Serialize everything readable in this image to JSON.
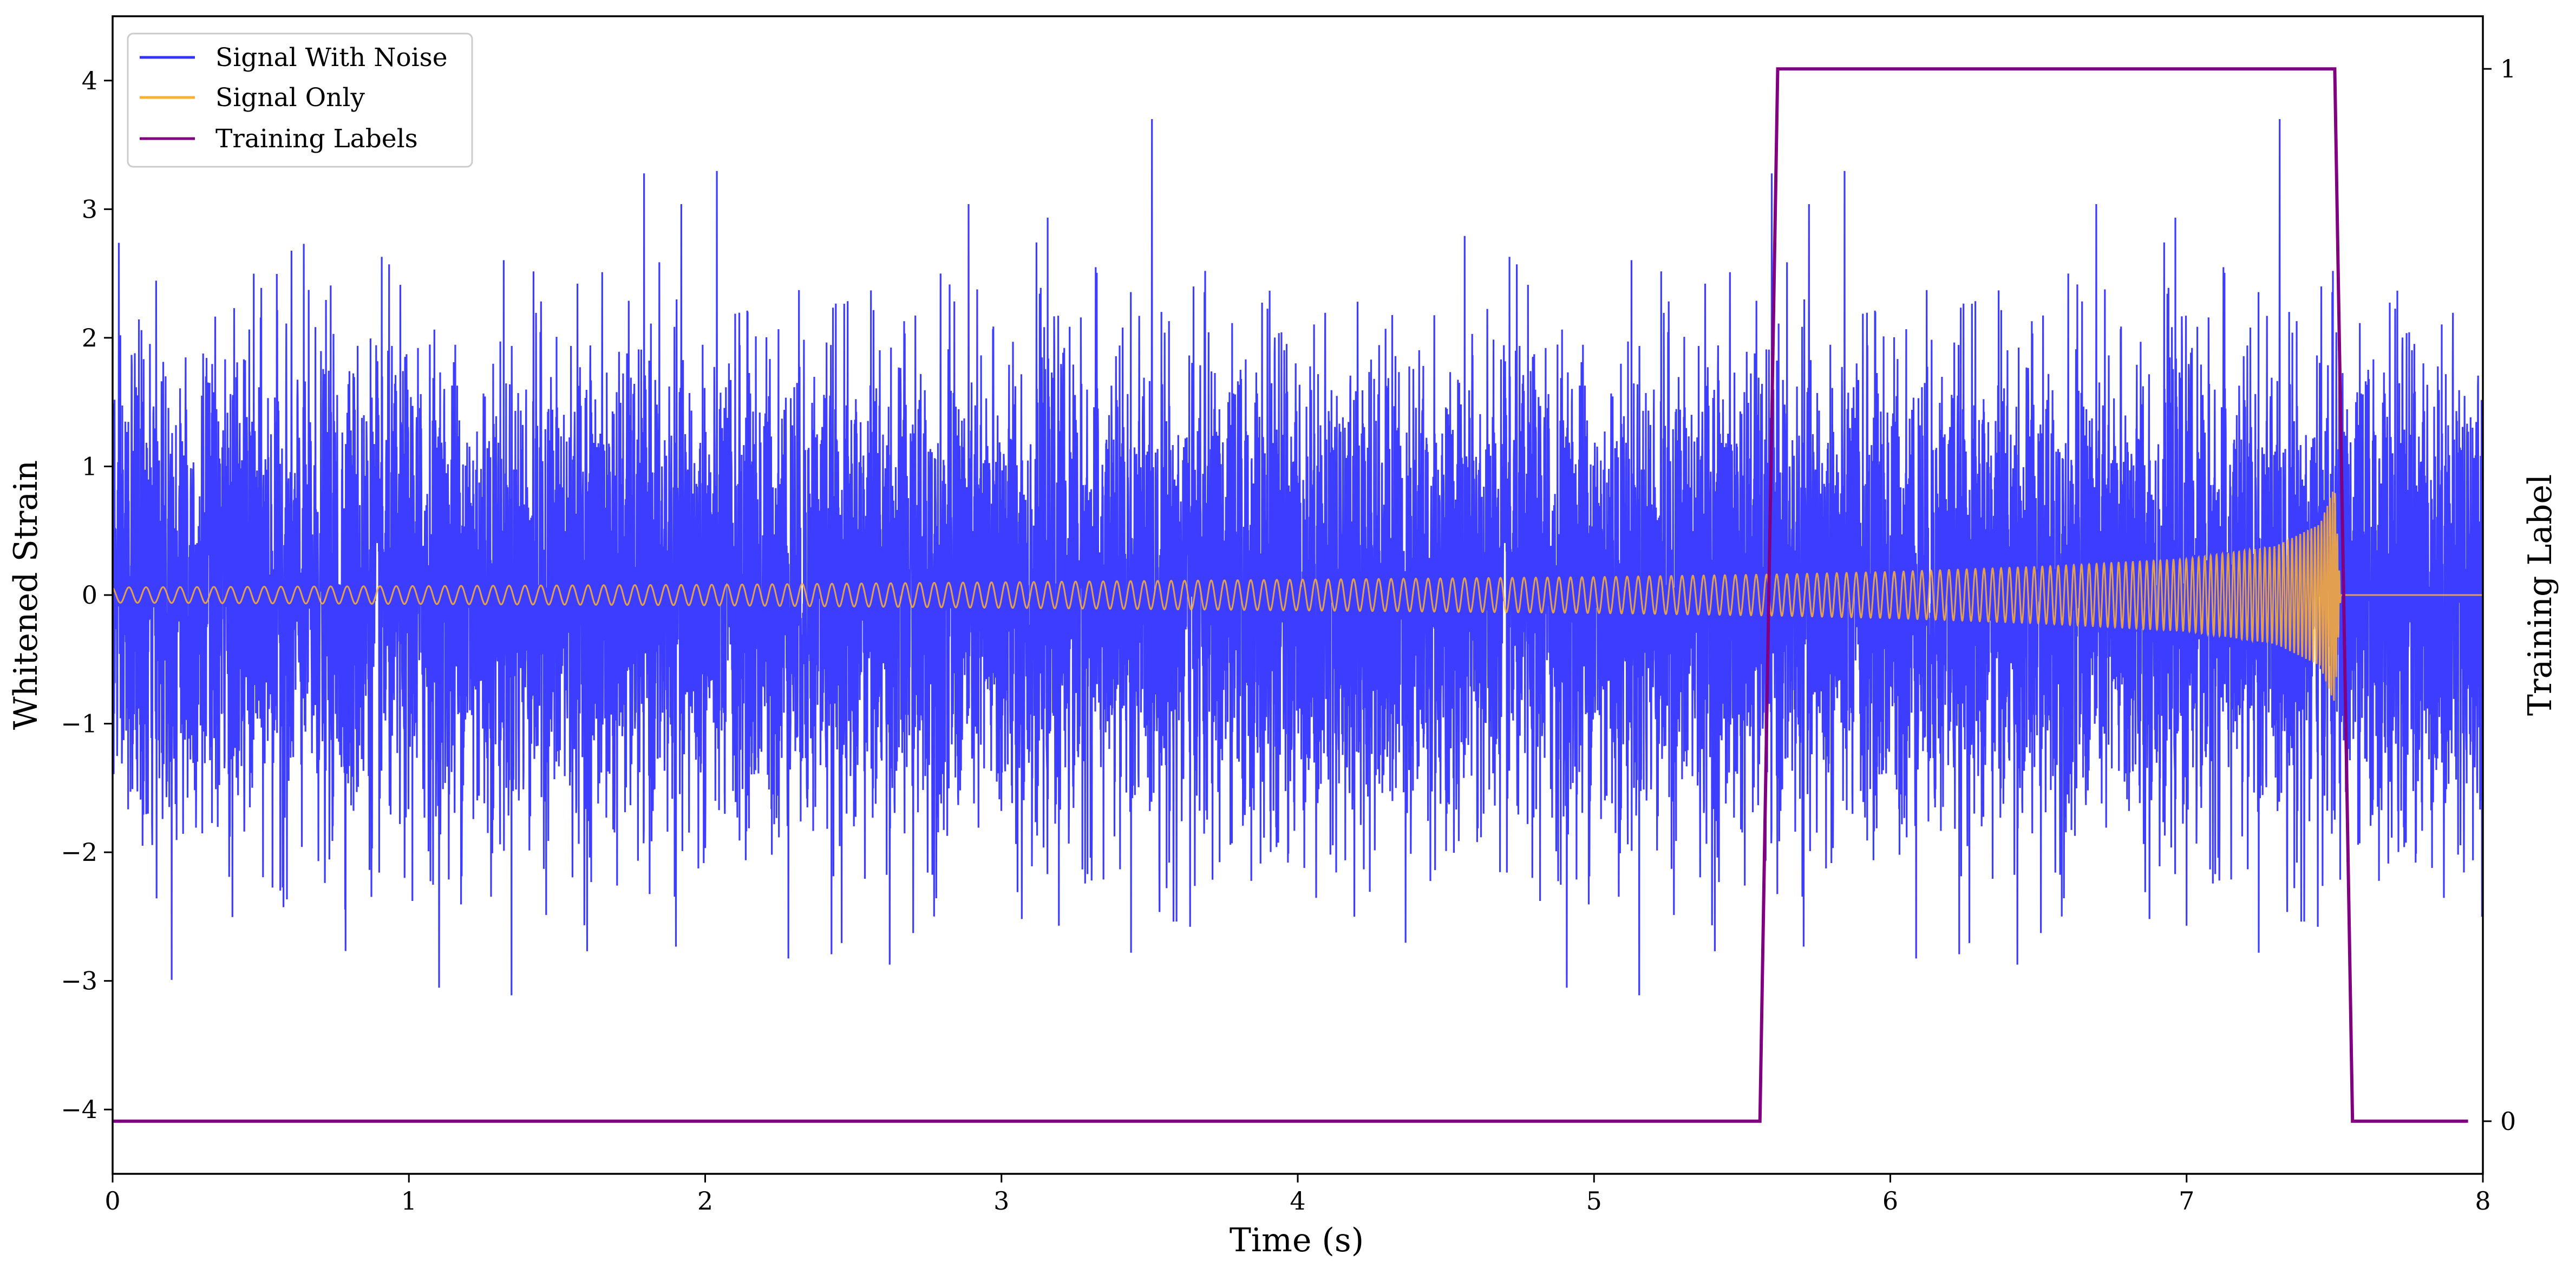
{
  "chart_data": {
    "type": "line",
    "xlabel": "Time (s)",
    "ylabel": "Whitened Strain",
    "y2label": "Training Label",
    "xlim": [
      0,
      8
    ],
    "ylim": [
      -4.5,
      4.5
    ],
    "y2lim": [
      -0.05,
      1.05
    ],
    "x_ticks": [
      "0",
      "1",
      "2",
      "3",
      "4",
      "5",
      "6",
      "7",
      "8"
    ],
    "y_ticks": [
      "−4",
      "−3",
      "−2",
      "−1",
      "0",
      "1",
      "2",
      "3",
      "4"
    ],
    "y2_ticks": [
      "0",
      "1"
    ],
    "legend_position": "upper-left",
    "grid": false,
    "series": [
      {
        "name": "Signal With Noise",
        "color": "#3333ff",
        "axis": "left",
        "description_range": [
          -4.0,
          3.7
        ]
      },
      {
        "name": "Signal Only",
        "color": "#ffb030",
        "axis": "left",
        "envelope": {
          "x": [
            0,
            1,
            2,
            3,
            4,
            5,
            5.6,
            6,
            6.5,
            7,
            7.3,
            7.45,
            7.5,
            7.52,
            8
          ],
          "amplitude": [
            0.06,
            0.07,
            0.08,
            0.1,
            0.12,
            0.14,
            0.16,
            0.18,
            0.22,
            0.28,
            0.38,
            0.55,
            0.85,
            0,
            0
          ]
        }
      },
      {
        "name": "Training Labels",
        "color": "#800080",
        "axis": "right",
        "x": [
          0,
          5.56,
          5.62,
          7.5,
          7.56,
          7.95
        ],
        "values": [
          0,
          0,
          1,
          1,
          0,
          0
        ]
      }
    ]
  }
}
